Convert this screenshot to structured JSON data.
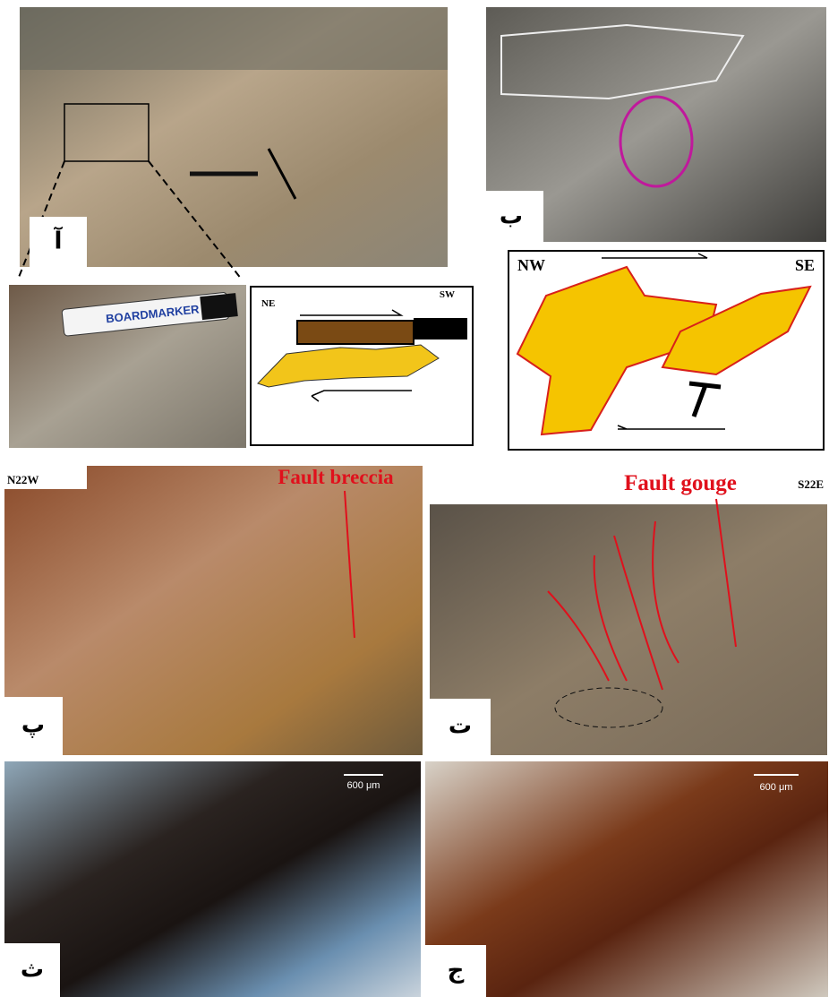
{
  "panels": [
    {
      "label": "آ"
    },
    {
      "label": "ب"
    },
    {
      "label": "پ"
    },
    {
      "label": "ت"
    },
    {
      "label": "ث"
    },
    {
      "label": "ج"
    }
  ],
  "sketch_1": {
    "left": "NE",
    "right": "SW"
  },
  "sketch_2": {
    "left": "NW",
    "right": "SE"
  },
  "orientation": {
    "left": "N22W",
    "right": "S22E"
  },
  "annotations": {
    "breccia": "Fault breccia",
    "gouge": "Fault gouge"
  },
  "scale_bars": [
    "600 μm",
    "600 μm"
  ],
  "marker_text": "BOARDMARKER"
}
